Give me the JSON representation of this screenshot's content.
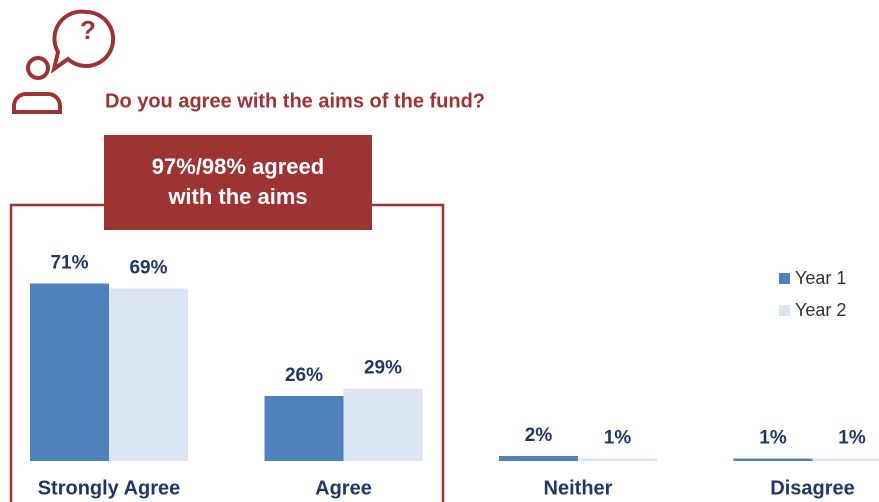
{
  "chart_data": {
    "type": "bar",
    "title": "Do you agree with the aims of the fund?",
    "annotation": [
      "97%/98%  agreed",
      "with the aims"
    ],
    "categories": [
      "Strongly Agree",
      "Agree",
      "Neither",
      "Disagree"
    ],
    "series": [
      {
        "name": "Year 1",
        "color": "#4f81bd",
        "values": [
          71,
          26,
          2,
          1
        ],
        "value_labels": [
          "71%",
          "26%",
          "2%",
          "1%"
        ]
      },
      {
        "name": "Year 2",
        "color": "#dce6f2",
        "values": [
          69,
          29,
          1,
          1
        ],
        "value_labels": [
          "69%",
          "29%",
          "1%",
          "1%"
        ]
      }
    ],
    "legend": "right"
  }
}
